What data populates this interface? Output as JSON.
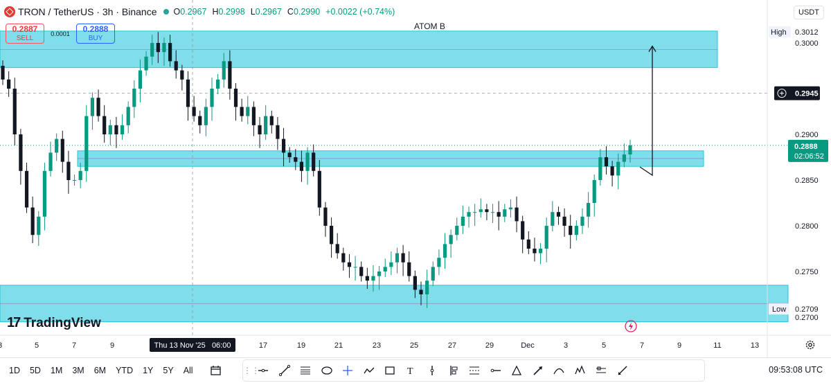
{
  "header": {
    "symbol": "TRON / TetherUS · 3h · Binance",
    "open_label": "O",
    "open": "0.2967",
    "high_label": "H",
    "high": "0.2998",
    "low_label": "L",
    "low": "0.2967",
    "close_label": "C",
    "close": "0.2990",
    "change": "+0.0022 (+0.74%)"
  },
  "trade": {
    "sell_price": "0.2887",
    "sell_label": "SELL",
    "spread": "0.0001",
    "buy_price": "0.2888",
    "buy_label": "BUY"
  },
  "currency": "USDT",
  "annotation_text": "ATOM B",
  "price_axis": {
    "ticks": [
      "0.3000",
      "0.2900",
      "0.2850",
      "0.2800",
      "0.2750",
      "0.2700"
    ],
    "high_label": "High",
    "high_value": "0.3012",
    "crosshair_value": "0.2945",
    "last_price": "0.2888",
    "countdown": "02:06:52",
    "low_label": "Low",
    "low_value": "0.2709"
  },
  "time_axis": {
    "ticks": [
      "3",
      "5",
      "7",
      "9",
      "17",
      "19",
      "21",
      "23",
      "25",
      "27",
      "29",
      "Dec",
      "3",
      "5",
      "7",
      "9",
      "11",
      "13"
    ],
    "crosshair_label": "Thu 13 Nov '25   06:00"
  },
  "watermark": "TradingView",
  "ranges": [
    "1D",
    "5D",
    "1M",
    "3M",
    "6M",
    "YTD",
    "1Y",
    "5Y",
    "All"
  ],
  "tools": [
    "horizontal-line-icon",
    "trend-line-icon",
    "fib-icon",
    "ellipse-icon",
    "crosshair-icon",
    "path-icon",
    "rectangle-icon",
    "text-icon",
    "vertical-line-icon",
    "long-position-icon",
    "pattern-icon",
    "horizontal-ray-icon",
    "triangle-icon",
    "arrow-marker-icon",
    "curve-icon",
    "elliott-icon",
    "forecast-icon",
    "brush-icon"
  ],
  "clock": "09:53:08 UTC",
  "colors": {
    "zone": "#80deea",
    "zone_border": "#26c6da",
    "up": "#089981",
    "down": "#131722",
    "last_price_bg": "#089981"
  },
  "chart_data": {
    "type": "candlestick",
    "title": "TRON / TetherUS · 3h · Binance",
    "ylim": [
      0.2695,
      0.303
    ],
    "zones": [
      {
        "from": 0.2973,
        "to": 0.3013
      },
      {
        "from": 0.2865,
        "to": 0.2882
      },
      {
        "from": 0.2695,
        "to": 0.2735
      }
    ],
    "target_arrow": {
      "from_price": 0.2875,
      "to_price": 0.2995
    },
    "close": [
      0.296,
      0.295,
      0.29,
      0.286,
      0.282,
      0.279,
      0.281,
      0.286,
      0.288,
      0.2895,
      0.287,
      0.285,
      0.285,
      0.286,
      0.292,
      0.294,
      0.292,
      0.29,
      0.291,
      0.29,
      0.291,
      0.293,
      0.295,
      0.297,
      0.2985,
      0.3,
      0.299,
      0.3,
      0.298,
      0.297,
      0.296,
      0.293,
      0.292,
      0.291,
      0.293,
      0.295,
      0.296,
      0.298,
      0.295,
      0.293,
      0.292,
      0.293,
      0.291,
      0.29,
      0.292,
      0.291,
      0.2895,
      0.288,
      0.2875,
      0.287,
      0.286,
      0.288,
      0.286,
      0.282,
      0.28,
      0.278,
      0.277,
      0.276,
      0.2755,
      0.2755,
      0.2745,
      0.274,
      0.2745,
      0.275,
      0.2755,
      0.276,
      0.277,
      0.276,
      0.2745,
      0.273,
      0.2725,
      0.274,
      0.2755,
      0.2765,
      0.278,
      0.279,
      0.28,
      0.281,
      0.2815,
      0.2815,
      0.2818,
      0.2815,
      0.2815,
      0.281,
      0.2818,
      0.282,
      0.2805,
      0.2785,
      0.2775,
      0.277,
      0.2775,
      0.28,
      0.2815,
      0.281,
      0.28,
      0.279,
      0.28,
      0.281,
      0.2825,
      0.285,
      0.2875,
      0.2865,
      0.2855,
      0.287,
      0.2878,
      0.2888
    ]
  }
}
